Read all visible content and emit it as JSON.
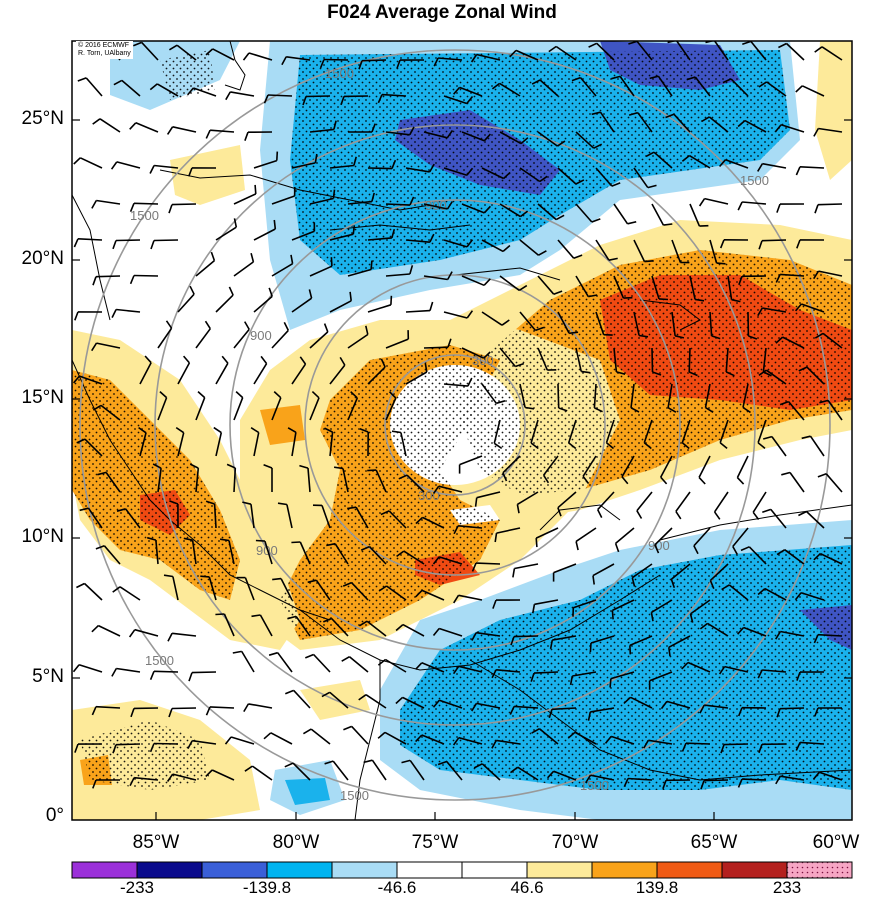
{
  "title": "F024 Average Zonal Wind",
  "credit": {
    "line1": "© 2016 ECMWF",
    "line2": "R. Torn, UAlbany"
  },
  "lat_labels": [
    "25°N",
    "20°N",
    "15°N",
    "10°N",
    "5°N",
    "0°"
  ],
  "lon_labels": [
    "85°W",
    "80°W",
    "75°W",
    "70°W",
    "65°W",
    "60°W"
  ],
  "range_ring_labels": [
    "300",
    "300",
    "900",
    "900",
    "900",
    "900",
    "1500",
    "1500",
    "1500",
    "1500",
    "1500",
    "1500"
  ],
  "colorbar": {
    "labels": [
      "-233",
      "-139.8",
      "-46.6",
      "46.6",
      "139.8",
      "233"
    ],
    "colors": [
      "#9b30d9",
      "#0a0a8c",
      "#3a5fd8",
      "#00b4f0",
      "#a9dcf5",
      "#ffffff",
      "#ffffff",
      "#fdea9a",
      "#f9a31a",
      "#f05a14",
      "#b4201e",
      "#f7a6c4"
    ]
  },
  "fill_colors": {
    "light_blue": "#a9dcf5",
    "blue": "#1ab2ec",
    "dark_blue": "#3f55c4",
    "light_yellow": "#fdea9a",
    "orange": "#f9a31a",
    "red": "#f04a12"
  }
}
